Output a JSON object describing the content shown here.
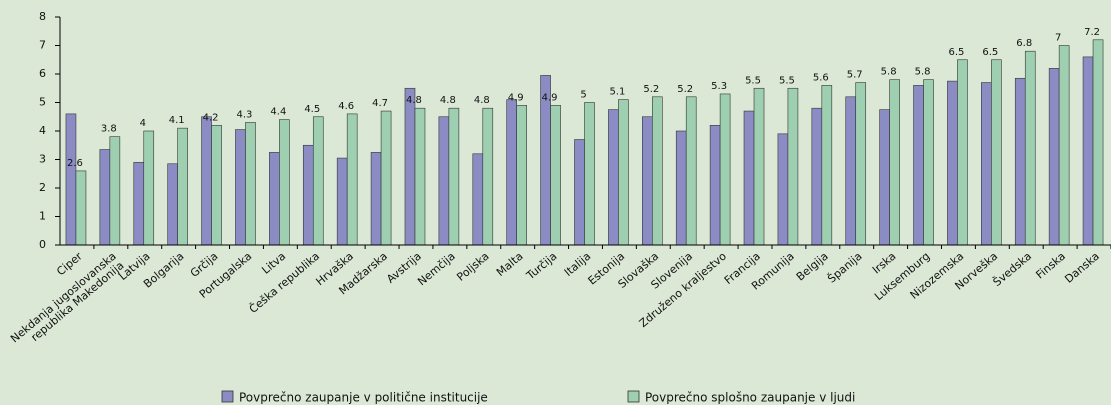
{
  "chart_data": {
    "type": "bar",
    "categories": [
      "Ciper",
      "Nekdanja jugoslovanska republika Makedonija",
      "Latvija",
      "Bolgarija",
      "Grčija",
      "Portugalska",
      "Litva",
      "Češka republika",
      "Hrvaška",
      "Madžarska",
      "Avstrija",
      "Nemčija",
      "Poljska",
      "Malta",
      "Turčija",
      "Italija",
      "Estonija",
      "Slovaška",
      "Slovenija",
      "Združeno kraljestvo",
      "Francija",
      "Romunija",
      "Belgija",
      "Španija",
      "Irska",
      "Luksemburg",
      "Nizozemska",
      "Norveška",
      "Švedska",
      "Finska",
      "Danska"
    ],
    "series": [
      {
        "name": "Povprečno zaupanje v politične institucije",
        "color": "#8c8cc4",
        "values": [
          4.6,
          3.35,
          2.9,
          2.85,
          4.5,
          4.05,
          3.25,
          3.5,
          3.05,
          3.25,
          5.5,
          4.5,
          3.2,
          5.1,
          5.95,
          3.7,
          4.75,
          4.5,
          4.0,
          4.2,
          4.7,
          3.9,
          4.8,
          5.2,
          4.75,
          5.6,
          5.75,
          5.7,
          5.85,
          6.2,
          6.6
        ]
      },
      {
        "name": "Povprečno splošno zaupanje v ljudi",
        "color": "#9dcfb0",
        "values": [
          2.6,
          3.8,
          4,
          4.1,
          4.2,
          4.3,
          4.4,
          4.5,
          4.6,
          4.7,
          4.8,
          4.8,
          4.8,
          4.9,
          4.9,
          5,
          5.1,
          5.2,
          5.2,
          5.3,
          5.5,
          5.5,
          5.6,
          5.7,
          5.8,
          5.8,
          6.5,
          6.5,
          6.8,
          7,
          7.2
        ]
      }
    ],
    "labeled_series": 1,
    "ylim": [
      0,
      8
    ],
    "yticks": [
      0,
      1,
      2,
      3,
      4,
      5,
      6,
      7,
      8
    ]
  }
}
